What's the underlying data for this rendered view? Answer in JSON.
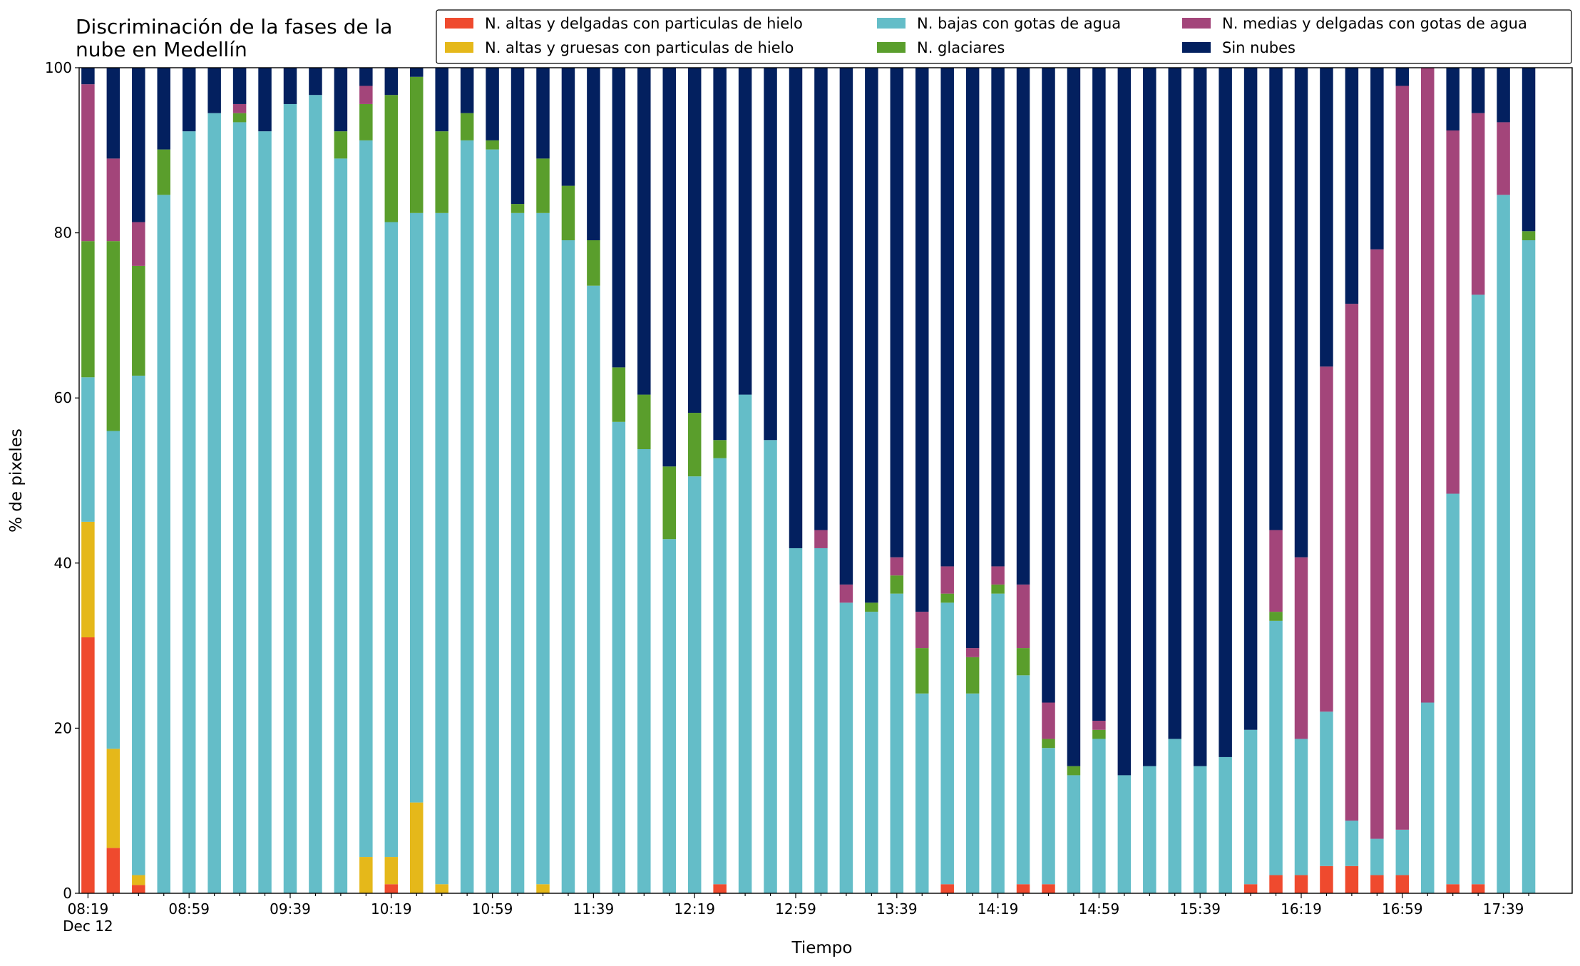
{
  "chart_data": {
    "type": "stacked_bar",
    "title": "Discriminación de la fases de la\nnube en Medellín",
    "x_label": "Tiempo",
    "y_label": "% de pixeles",
    "x_date_label": "Dec 12",
    "categories": [
      "08:19",
      null,
      null,
      null,
      "08:59",
      null,
      null,
      null,
      "09:39",
      null,
      null,
      null,
      "10:19",
      null,
      null,
      null,
      "10:59",
      null,
      null,
      null,
      "11:39",
      null,
      null,
      null,
      "12:19",
      null,
      null,
      null,
      "12:59",
      null,
      null,
      null,
      "13:39",
      null,
      null,
      null,
      "14:19",
      null,
      null,
      null,
      "14:59",
      null,
      null,
      null,
      "15:39",
      null,
      null,
      null,
      "16:19",
      null,
      null,
      null,
      "16:59",
      null,
      null,
      null,
      "17:39",
      null
    ],
    "ylim": [
      0,
      100
    ],
    "yticks": [
      0,
      20,
      40,
      60,
      80,
      100
    ],
    "series": [
      {
        "name": "N. altas y delgadas con particulas de hielo",
        "color": "#ef4a2e",
        "values": [
          31,
          5.5,
          1,
          0,
          0,
          0,
          0,
          0,
          0,
          0,
          0,
          0,
          1.1,
          0,
          0,
          0,
          0,
          0,
          0,
          0,
          0,
          0,
          0,
          0,
          0,
          1.1,
          0,
          0,
          0,
          0,
          0,
          0,
          0,
          0,
          1.1,
          0,
          0,
          1.1,
          1.1,
          0,
          0,
          0,
          0,
          0,
          0,
          0,
          1.1,
          2.2,
          2.2,
          3.3,
          3.3,
          2.2,
          2.2,
          0,
          1.1,
          1.1,
          0,
          0
        ]
      },
      {
        "name": "N. altas y gruesas con particulas de hielo",
        "color": "#e5b81a",
        "values": [
          14,
          12,
          1.2,
          0,
          0,
          0,
          0,
          0,
          0,
          0,
          0,
          4.4,
          3.3,
          11,
          1.1,
          0,
          0,
          0,
          1.1,
          0,
          0,
          0,
          0,
          0,
          0,
          0,
          0,
          0,
          0,
          0,
          0,
          0,
          0,
          0,
          0,
          0,
          0,
          0,
          0,
          0,
          0,
          0,
          0,
          0,
          0,
          0,
          0,
          0,
          0,
          0,
          0,
          0,
          0,
          0,
          0,
          0,
          0,
          0
        ]
      },
      {
        "name": "N. bajas con gotas de agua",
        "color": "#64bdc8",
        "values": [
          17.5,
          38.5,
          60.5,
          84.6,
          92.3,
          94.5,
          93.4,
          92.3,
          95.6,
          96.7,
          89,
          86.8,
          76.9,
          71.4,
          81.3,
          91.2,
          90.1,
          82.4,
          81.3,
          79.1,
          73.6,
          57.1,
          53.8,
          42.9,
          50.5,
          51.6,
          60.4,
          54.9,
          41.8,
          41.8,
          35.2,
          34.1,
          36.3,
          24.2,
          34.1,
          24.2,
          36.3,
          25.3,
          16.5,
          14.3,
          18.7,
          14.3,
          15.4,
          18.7,
          15.4,
          16.5,
          18.7,
          30.8,
          16.5,
          18.7,
          5.5,
          4.4,
          5.5,
          23.1,
          47.3,
          71.4,
          84.6,
          79.1
        ]
      },
      {
        "name": "N. glaciares",
        "color": "#5a9e2c",
        "values": [
          16.5,
          23,
          13.3,
          5.5,
          0,
          0,
          1.1,
          0,
          0,
          0,
          3.3,
          4.4,
          15.4,
          16.5,
          9.9,
          3.3,
          1.1,
          1.1,
          6.6,
          6.6,
          5.5,
          6.6,
          6.6,
          8.8,
          7.7,
          2.2,
          0,
          0,
          0,
          0,
          0,
          1.1,
          2.2,
          5.5,
          1.1,
          4.4,
          1.1,
          3.3,
          1.1,
          1.1,
          1.1,
          0,
          0,
          0,
          0,
          0,
          0,
          1.1,
          0,
          0,
          0,
          0,
          0,
          0,
          0,
          0,
          0,
          1.1
        ]
      },
      {
        "name": "N. medias y delgadas con gotas de agua",
        "color": "#a3457a",
        "values": [
          19,
          10,
          5.3,
          0,
          0,
          0,
          1.1,
          0,
          0,
          0,
          0,
          2.2,
          0,
          0,
          0,
          0,
          0,
          0,
          0,
          0,
          0,
          0,
          0,
          0,
          0,
          0,
          0,
          0,
          0,
          2.2,
          2.2,
          0,
          2.2,
          4.4,
          3.3,
          1.1,
          2.2,
          7.7,
          4.4,
          0,
          1.1,
          0,
          0,
          0,
          0,
          0,
          0,
          9.9,
          22,
          41.8,
          62.6,
          71.4,
          90.1,
          76.9,
          44,
          22,
          8.8,
          0
        ]
      },
      {
        "name": "Sin nubes",
        "color": "#03205f",
        "values": [
          2,
          11,
          18.7,
          9.9,
          7.7,
          5.5,
          4.4,
          7.7,
          4.4,
          3.3,
          7.7,
          2.2,
          3.3,
          1.1,
          7.7,
          5.5,
          8.8,
          16.5,
          11,
          14.3,
          20.9,
          36.3,
          39.6,
          48.3,
          41.8,
          45.1,
          39.6,
          45.1,
          58.2,
          56,
          62.6,
          64.8,
          59.3,
          65.9,
          60.4,
          70.3,
          60.4,
          62.6,
          76.9,
          84.6,
          79.1,
          85.7,
          84.6,
          81.3,
          84.6,
          83.5,
          80.2,
          56,
          59.3,
          36.2,
          28.6,
          22,
          2.2,
          0,
          7.6,
          5.5,
          6.6,
          19.8
        ]
      }
    ]
  }
}
